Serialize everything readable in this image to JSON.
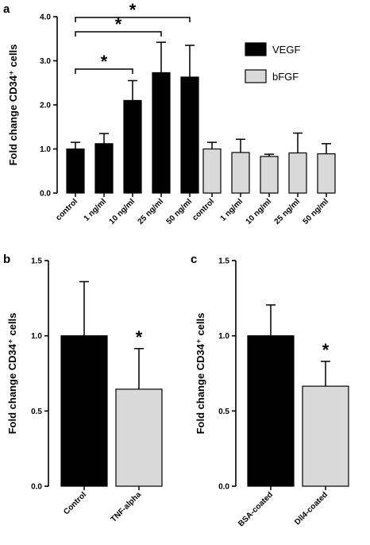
{
  "chart_data": [
    {
      "panel": "a",
      "type": "bar",
      "ylabel": "Fold change CD34⁺ cells",
      "ylim": [
        0,
        4
      ],
      "yticks": [
        "0.0",
        "1.0",
        "2.0",
        "3.0",
        "4.0"
      ],
      "categories": [
        "control",
        "1 ng/ml",
        "10 ng/ml",
        "25 ng/ml",
        "50 ng/ml"
      ],
      "series": [
        {
          "name": "VEGF",
          "color": "#000000",
          "values": [
            1.0,
            1.12,
            2.1,
            2.73,
            2.63
          ],
          "errors": [
            0.15,
            0.23,
            0.45,
            0.69,
            0.72
          ]
        },
        {
          "name": "bFGF",
          "color": "#d9d9d9",
          "values": [
            1.0,
            0.92,
            0.83,
            0.91,
            0.89
          ],
          "errors": [
            0.15,
            0.3,
            0.05,
            0.45,
            0.23
          ]
        }
      ],
      "significance": [
        {
          "series": 0,
          "from": 0,
          "to": 2,
          "label": "*"
        },
        {
          "series": 0,
          "from": 0,
          "to": 3,
          "label": "*"
        },
        {
          "series": 0,
          "from": 0,
          "to": 4,
          "label": "*"
        }
      ],
      "legend": "top-right"
    },
    {
      "panel": "b",
      "type": "bar",
      "ylabel": "Fold change CD34⁺ cells",
      "ylim": [
        0,
        1.5
      ],
      "yticks": [
        "0.0",
        "0.5",
        "1.0",
        "1.5"
      ],
      "categories": [
        "Control",
        "TNF-alpha"
      ],
      "values": [
        1.0,
        0.645
      ],
      "errors": [
        0.36,
        0.27
      ],
      "colors": [
        "#000000",
        "#d9d9d9"
      ],
      "annotations": [
        {
          "category": 1,
          "label": "*"
        }
      ]
    },
    {
      "panel": "c",
      "type": "bar",
      "ylabel": "Fold change CD34⁺ cells",
      "ylim": [
        0,
        1.5
      ],
      "yticks": [
        "0.0",
        "0.5",
        "1.0",
        "1.5"
      ],
      "categories": [
        "BSA-coated",
        "Dll4-coated"
      ],
      "values": [
        1.0,
        0.665
      ],
      "errors": [
        0.205,
        0.165
      ],
      "colors": [
        "#000000",
        "#d9d9d9"
      ],
      "annotations": [
        {
          "category": 1,
          "label": "*"
        }
      ]
    }
  ]
}
